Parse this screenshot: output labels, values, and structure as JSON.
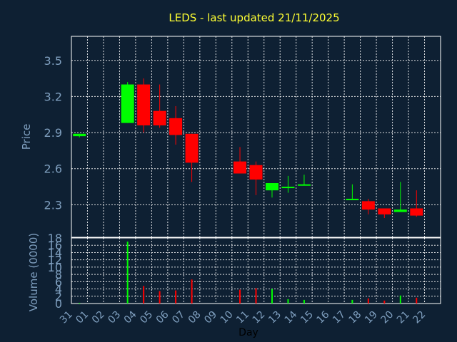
{
  "chart_data": [
    {
      "type": "candlestick",
      "title": "LEDS - last updated 21/11/2025",
      "ylabel": "Price",
      "ylim": [
        2.03,
        3.7
      ],
      "yticks": [
        "2.3",
        "2.6",
        "2.9",
        "3.2",
        "3.5"
      ],
      "grid": true,
      "colors": {
        "up": "#00ff00",
        "down": "#ff0000"
      },
      "candles": [
        {
          "day": "31",
          "open": 2.87,
          "high": 2.89,
          "low": 2.86,
          "close": 2.89
        },
        {
          "day": "03",
          "open": 2.98,
          "high": 3.32,
          "low": 2.98,
          "close": 3.3
        },
        {
          "day": "04",
          "open": 3.3,
          "high": 3.35,
          "low": 2.9,
          "close": 2.96
        },
        {
          "day": "05",
          "open": 3.08,
          "high": 3.3,
          "low": 2.94,
          "close": 2.96
        },
        {
          "day": "06",
          "open": 3.02,
          "high": 3.12,
          "low": 2.8,
          "close": 2.88
        },
        {
          "day": "07",
          "open": 2.89,
          "high": 2.89,
          "low": 2.49,
          "close": 2.65
        },
        {
          "day": "10",
          "open": 2.66,
          "high": 2.78,
          "low": 2.56,
          "close": 2.56
        },
        {
          "day": "11",
          "open": 2.63,
          "high": 2.66,
          "low": 2.38,
          "close": 2.51
        },
        {
          "day": "12",
          "open": 2.42,
          "high": 2.48,
          "low": 2.36,
          "close": 2.48
        },
        {
          "day": "13",
          "open": 2.44,
          "high": 2.54,
          "low": 2.4,
          "close": 2.45
        },
        {
          "day": "14",
          "open": 2.46,
          "high": 2.55,
          "low": 2.46,
          "close": 2.47
        },
        {
          "day": "17",
          "open": 2.34,
          "high": 2.47,
          "low": 2.34,
          "close": 2.35
        },
        {
          "day": "18",
          "open": 2.33,
          "high": 2.35,
          "low": 2.22,
          "close": 2.26
        },
        {
          "day": "19",
          "open": 2.27,
          "high": 2.27,
          "low": 2.19,
          "close": 2.22
        },
        {
          "day": "20",
          "open": 2.24,
          "high": 2.49,
          "low": 2.24,
          "close": 2.26
        },
        {
          "day": "21",
          "open": 2.27,
          "high": 2.42,
          "low": 2.2,
          "close": 2.21
        }
      ]
    },
    {
      "type": "bar",
      "ylabel": "Volume (0000)",
      "xlabel": "Day",
      "ylim": [
        0,
        18
      ],
      "yticks": [
        "0",
        "2",
        "4",
        "6",
        "8",
        "10",
        "12",
        "14",
        "16",
        "18"
      ],
      "categories": [
        "31",
        "01",
        "02",
        "03",
        "04",
        "05",
        "06",
        "07",
        "08",
        "09",
        "10",
        "11",
        "12",
        "13",
        "14",
        "15",
        "16",
        "17",
        "18",
        "19",
        "20",
        "21",
        "22"
      ],
      "volumes": [
        {
          "day": "31",
          "value": 0.2,
          "direction": "up"
        },
        {
          "day": "03",
          "value": 17.0,
          "direction": "up"
        },
        {
          "day": "04",
          "value": 4.8,
          "direction": "down"
        },
        {
          "day": "05",
          "value": 3.4,
          "direction": "down"
        },
        {
          "day": "06",
          "value": 3.6,
          "direction": "down"
        },
        {
          "day": "07",
          "value": 6.6,
          "direction": "down"
        },
        {
          "day": "10",
          "value": 3.8,
          "direction": "down"
        },
        {
          "day": "11",
          "value": 4.2,
          "direction": "down"
        },
        {
          "day": "12",
          "value": 4.0,
          "direction": "up"
        },
        {
          "day": "13",
          "value": 1.2,
          "direction": "up"
        },
        {
          "day": "14",
          "value": 1.0,
          "direction": "up"
        },
        {
          "day": "17",
          "value": 1.0,
          "direction": "up"
        },
        {
          "day": "18",
          "value": 1.4,
          "direction": "down"
        },
        {
          "day": "19",
          "value": 0.8,
          "direction": "down"
        },
        {
          "day": "20",
          "value": 2.2,
          "direction": "up"
        },
        {
          "day": "21",
          "value": 1.6,
          "direction": "down"
        }
      ]
    }
  ]
}
